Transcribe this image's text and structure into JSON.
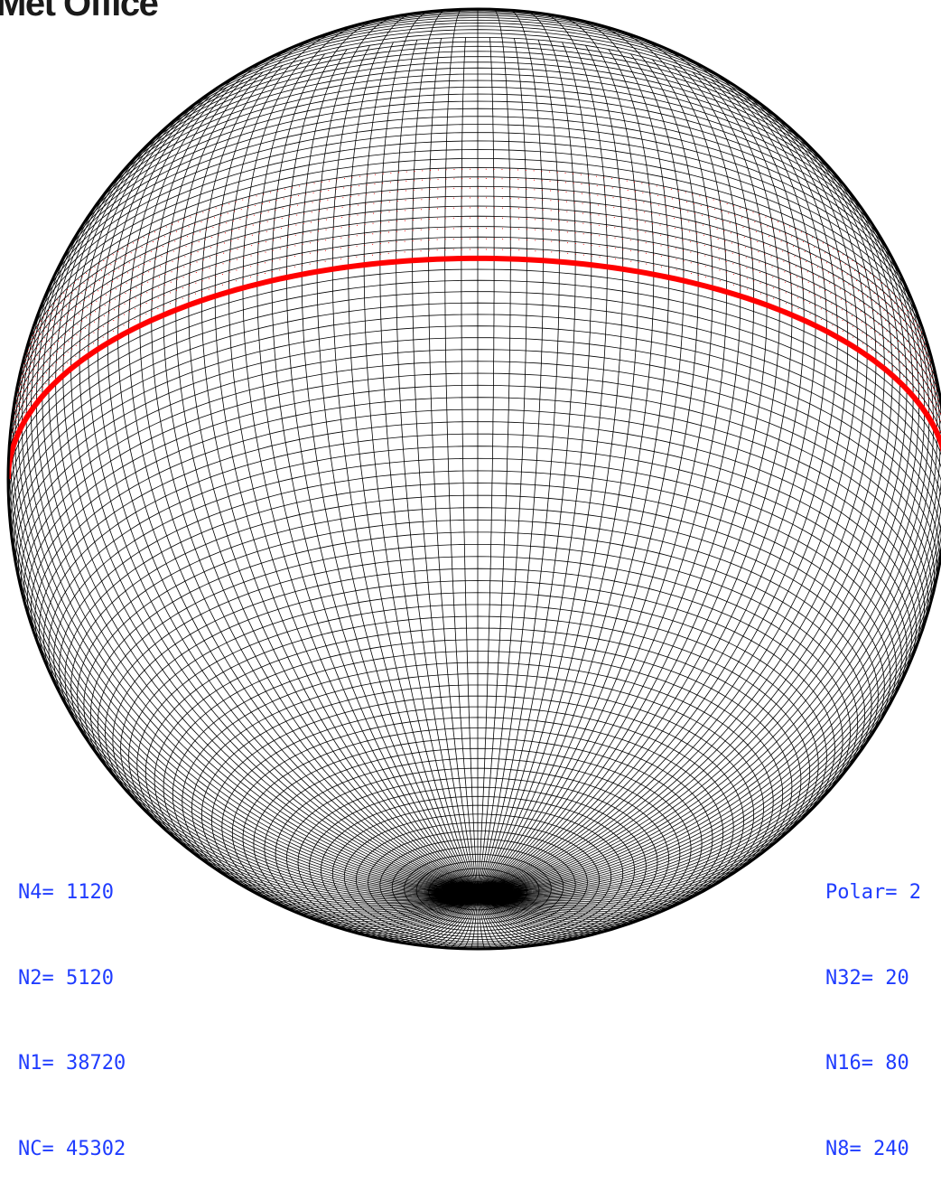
{
  "logo": {
    "text": "Met Office"
  },
  "colors": {
    "grid": "#000000",
    "equator": "#ff0000",
    "fine_grid_points": "#ff0000",
    "labels": "#1f3cff",
    "background": "#ffffff"
  },
  "stats_left": [
    {
      "text": "N4= 1120"
    },
    {
      "text": "N2= 5120"
    },
    {
      "text": "N1= 38720"
    },
    {
      "text": "NC= 45302"
    }
  ],
  "stats_right": [
    {
      "text": "Polar= 2"
    },
    {
      "text": "N32= 20"
    },
    {
      "text": "N16= 80"
    },
    {
      "text": "N8= 240"
    }
  ]
}
